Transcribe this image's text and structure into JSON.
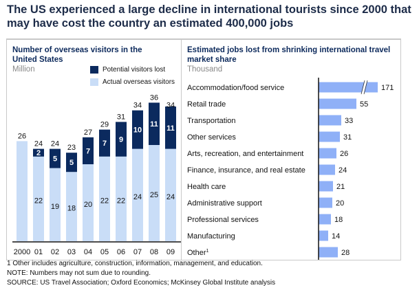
{
  "title": "The US experienced a large decline in international tourists since 2000 that may have cost the country an estimated 400,000 jobs",
  "colors": {
    "lost": "#0b2a5e",
    "actual": "#c9ddf7",
    "jobs": "#8fb0f7"
  },
  "chart_data": [
    {
      "type": "bar",
      "stacked": true,
      "title": "Number of overseas visitors in the United States",
      "unit": "Million",
      "categories": [
        "2000",
        "01",
        "02",
        "03",
        "04",
        "05",
        "06",
        "07",
        "08",
        "09"
      ],
      "series": [
        {
          "name": "Actual overseas visitors",
          "values": [
            26,
            22,
            19,
            18,
            20,
            22,
            22,
            24,
            25,
            24
          ]
        },
        {
          "name": "Potential visitors lost",
          "values": [
            0,
            2,
            5,
            5,
            7,
            7,
            9,
            10,
            11,
            11
          ]
        }
      ],
      "totals": [
        26,
        24,
        24,
        23,
        27,
        29,
        31,
        34,
        36,
        34
      ],
      "legend": "top-right"
    },
    {
      "type": "bar",
      "orientation": "horizontal",
      "title": "Estimated jobs lost from shrinking international travel market share",
      "unit": "Thousand",
      "categories": [
        "Accommodation/food service",
        "Retail trade",
        "Transportation",
        "Other services",
        "Arts, recreation, and entertainment",
        "Finance, insurance, and real estate",
        "Health care",
        "Administrative support",
        "Professional services",
        "Manufacturing",
        "Other"
      ],
      "footnote_marks": [
        "",
        "",
        "",
        "",
        "",
        "",
        "",
        "",
        "",
        "",
        "1"
      ],
      "values": [
        171,
        55,
        33,
        31,
        26,
        24,
        21,
        20,
        18,
        14,
        28
      ],
      "axis_break_on": "Accommodation/food service"
    }
  ],
  "footnotes": [
    "1 Other includes agriculture, construction, information, management, and education.",
    "NOTE: Numbers may not sum due to rounding.",
    "SOURCE: US Travel Association; Oxford Economics; McKinsey Global Institute analysis"
  ]
}
